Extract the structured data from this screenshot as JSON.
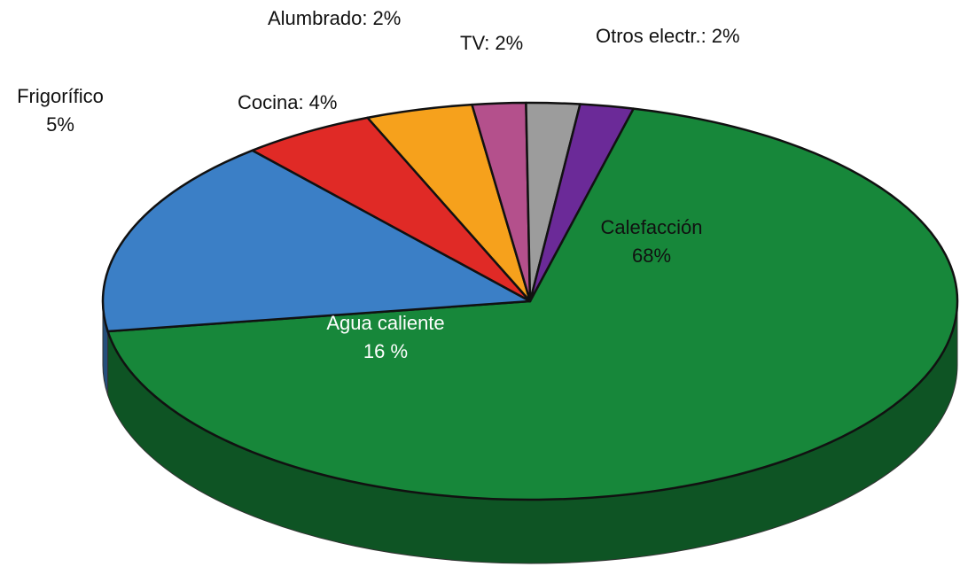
{
  "chart_data": {
    "type": "pie",
    "categories": [
      "Calefacción",
      "Agua caliente",
      "Frigorífico",
      "Cocina:",
      "Alumbrado:",
      "TV:",
      "Otros electr.:"
    ],
    "values": [
      68,
      16,
      5,
      4,
      2,
      2,
      2
    ],
    "value_labels": [
      "68%",
      "16 %",
      "5%",
      "4%",
      "2%",
      "2%",
      "2%"
    ],
    "colors": [
      "#17873a",
      "#3b7fc6",
      "#e02a26",
      "#f6a11c",
      "#b4508c",
      "#9c9c9c",
      "#6b2a98"
    ]
  }
}
